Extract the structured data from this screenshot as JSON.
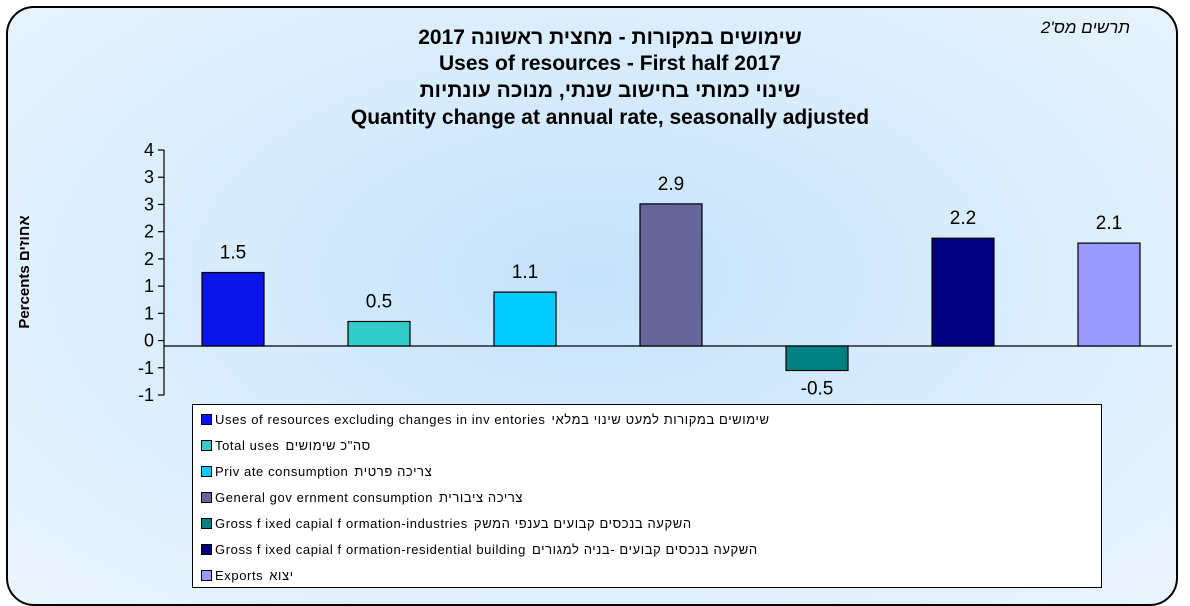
{
  "figure_label": "תרשים מס'2",
  "chart_data": {
    "type": "bar",
    "title_lines": [
      "שימושים במקורות - מחצית ראשונה 2017",
      "Uses of resources - First half 2017",
      "שינוי כמותי בחישוב שנתי, מנוכה עונתיות",
      "Quantity change at annual rate, seasonally adjusted"
    ],
    "ylabel_en": "Percents",
    "ylabel_he": "אחוזים",
    "ytick_labels": [
      "4",
      "3",
      "3",
      "2",
      "2",
      "1",
      "1",
      "0",
      "-1",
      "-1"
    ],
    "ylim": [
      -1,
      4
    ],
    "grid": false,
    "legend_position": "bottom",
    "series": [
      {
        "name_en": "Uses of resources excluding changes in inv entories",
        "name_he": "שימושים במקורות למעט שינוי במלאי",
        "value": 1.5,
        "label": "1.5",
        "color": "#0a14e6"
      },
      {
        "name_en": "Total uses",
        "name_he": "סה\"כ שימושים",
        "value": 0.5,
        "label": "0.5",
        "color": "#33cccc"
      },
      {
        "name_en": "Priv ate consumption",
        "name_he": "צריכה פרטית",
        "value": 1.1,
        "label": "1.1",
        "color": "#00ccff"
      },
      {
        "name_en": "General gov ernment consumption",
        "name_he": "צריכה ציבורית",
        "value": 2.9,
        "label": "2.9",
        "color": "#666699"
      },
      {
        "name_en": "Gross f ixed capial f ormation-industries",
        "name_he": "השקעה בנכסים קבועים בענפי המשק",
        "value": -0.5,
        "label": "-0.5",
        "color": "#008080"
      },
      {
        "name_en": "Gross f ixed capial f ormation-residential building",
        "name_he": "השקעה בנכסים קבועים -בניה למגורים",
        "value": 2.2,
        "label": "2.2",
        "color": "#000080"
      },
      {
        "name_en": "Exports",
        "name_he": "יצוא",
        "value": 2.1,
        "label": "2.1",
        "color": "#9999ff"
      }
    ]
  }
}
